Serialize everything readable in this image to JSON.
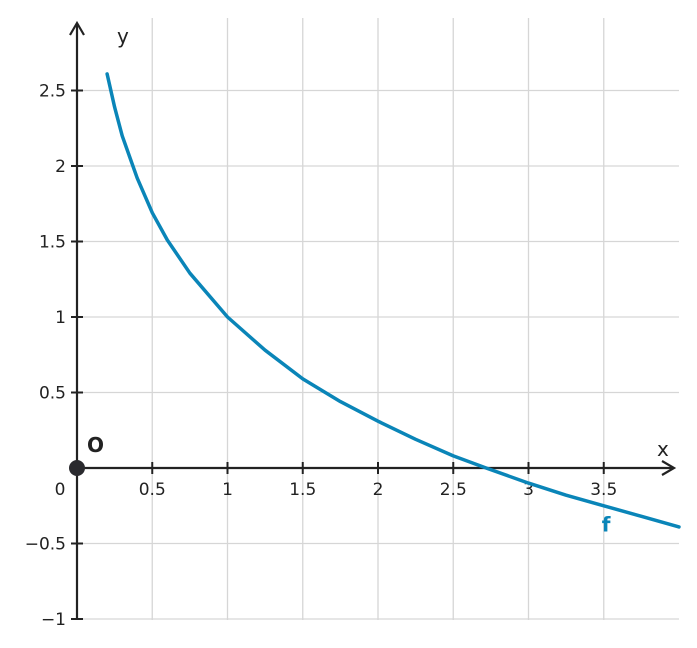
{
  "chart_data": {
    "type": "line",
    "xlabel": "x",
    "ylabel": "y",
    "xlim": [
      0,
      4
    ],
    "ylim": [
      -1,
      3
    ],
    "x_ticks": [
      0.5,
      1,
      1.5,
      2,
      2.5,
      3,
      3.5
    ],
    "x_tick_labels": [
      "0.5",
      "1",
      "1.5",
      "2",
      "2.5",
      "3",
      "3.5"
    ],
    "y_ticks": [
      2.5,
      2,
      1.5,
      1,
      0.5,
      -0.5,
      -1
    ],
    "y_tick_labels": [
      "2.5",
      "2",
      "1.5",
      "1",
      "0.5",
      "−0.5",
      "−1"
    ],
    "origin_tick_label": "0",
    "origin_point_label": "O",
    "grid": true,
    "series": [
      {
        "name": "f",
        "color": "#0a85b8",
        "x": [
          0.2,
          0.25,
          0.3,
          0.4,
          0.5,
          0.6,
          0.75,
          1,
          1.25,
          1.5,
          1.75,
          2,
          2.25,
          2.5,
          2.718,
          3,
          3.25,
          3.5,
          3.75,
          4
        ],
        "y": [
          2.61,
          2.39,
          2.2,
          1.92,
          1.69,
          1.51,
          1.29,
          1,
          0.78,
          0.59,
          0.44,
          0.31,
          0.19,
          0.08,
          0,
          -0.1,
          -0.18,
          -0.25,
          -0.32,
          -0.39
        ]
      }
    ]
  }
}
